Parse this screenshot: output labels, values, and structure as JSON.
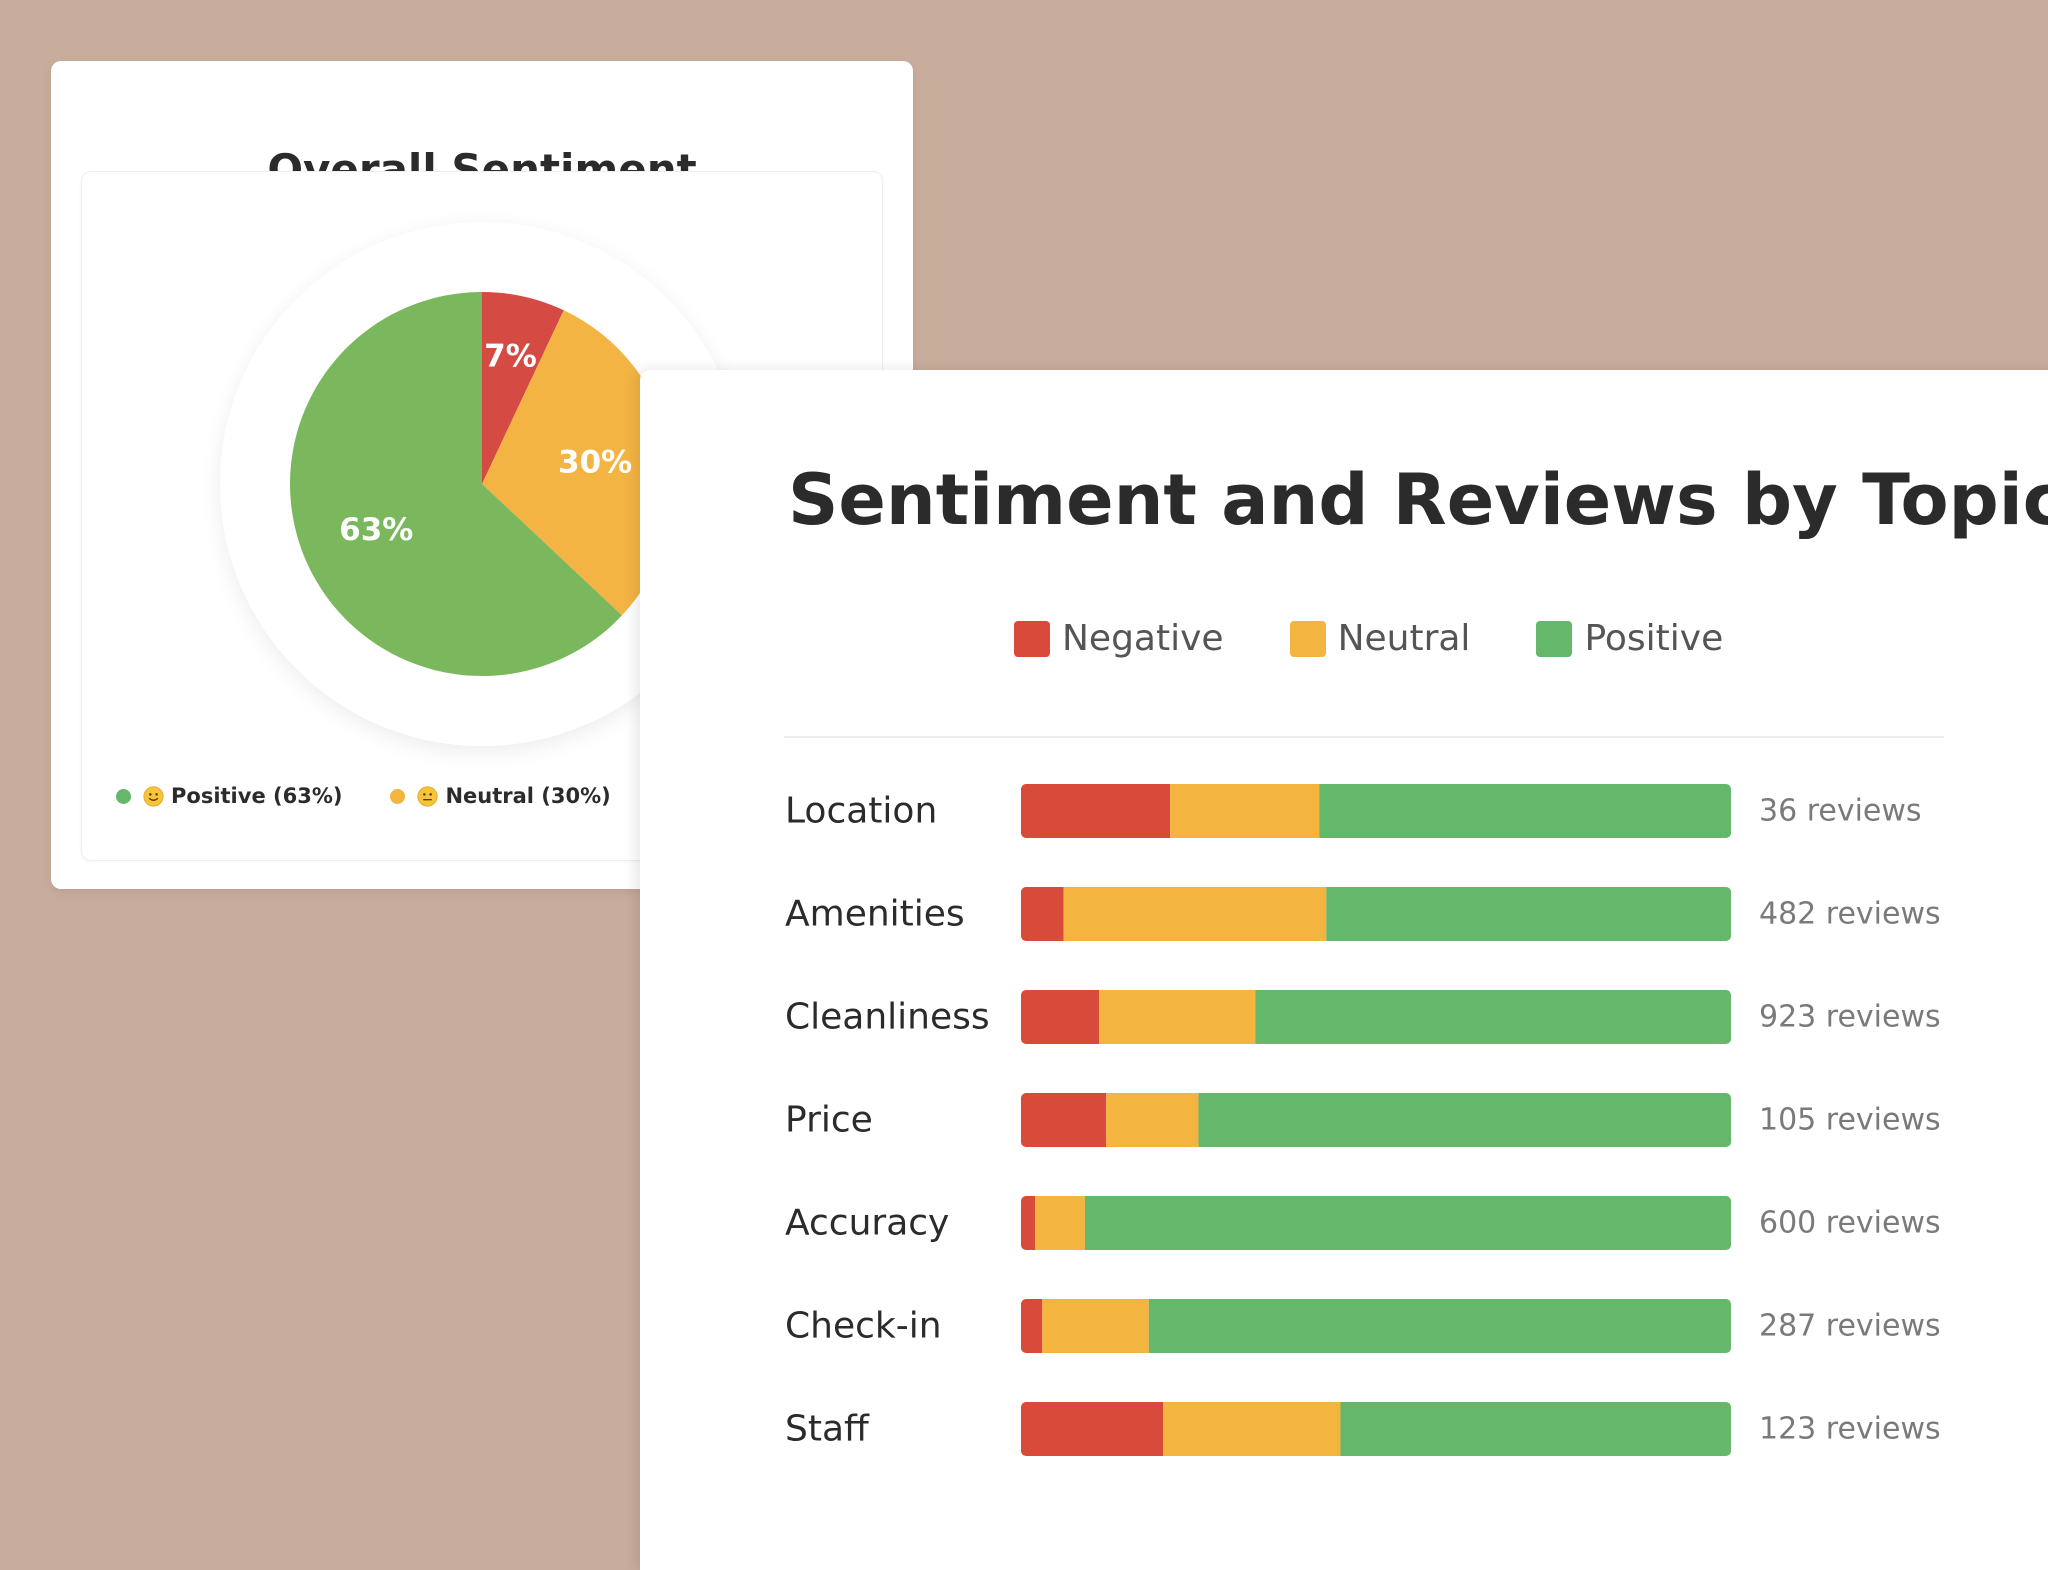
{
  "colors": {
    "negative": "#d84b3a",
    "neutral": "#f3b440",
    "positive": "#64b76b",
    "pie_negative": "#d64a44",
    "pie_neutral": "#f4b443",
    "pie_positive": "#7bb75d"
  },
  "overall_card": {
    "title": "Overall Sentiment",
    "legend": [
      {
        "label": "Positive (63%)",
        "color": "#64b76b",
        "icon": "slightly-smiling-face-icon"
      },
      {
        "label": "Neutral (30%)",
        "color": "#f3b440",
        "icon": "neutral-face-icon"
      }
    ]
  },
  "topic_card": {
    "title": "Sentiment and Reviews by Topic",
    "legend": [
      {
        "label": "Negative",
        "color": "#d84b3a"
      },
      {
        "label": "Neutral",
        "color": "#f3b440"
      },
      {
        "label": "Positive",
        "color": "#64b76b"
      }
    ]
  },
  "chart_data": [
    {
      "type": "pie",
      "title": "Overall Sentiment",
      "slices": [
        {
          "name": "Negative",
          "value": 7,
          "label": "7%"
        },
        {
          "name": "Neutral",
          "value": 30,
          "label": "30%"
        },
        {
          "name": "Positive",
          "value": 63,
          "label": "63%"
        }
      ]
    },
    {
      "type": "bar",
      "stacked": true,
      "orientation": "horizontal",
      "title": "Sentiment and Reviews by Topic",
      "categories": [
        "Location",
        "Amenities",
        "Cleanliness",
        "Price",
        "Accuracy",
        "Check-in",
        "Staff"
      ],
      "series": [
        {
          "name": "Negative",
          "values": [
            21,
            6,
            11,
            12,
            2,
            3,
            20
          ]
        },
        {
          "name": "Neutral",
          "values": [
            21,
            37,
            22,
            13,
            7,
            15,
            25
          ]
        },
        {
          "name": "Positive",
          "values": [
            58,
            57,
            67,
            75,
            91,
            82,
            55
          ]
        }
      ],
      "review_labels": [
        "36 reviews",
        "482 reviews",
        "923 reviews",
        "105 reviews",
        "600 reviews",
        "287 reviews",
        "123 reviews"
      ],
      "xlim": [
        0,
        100
      ]
    }
  ]
}
